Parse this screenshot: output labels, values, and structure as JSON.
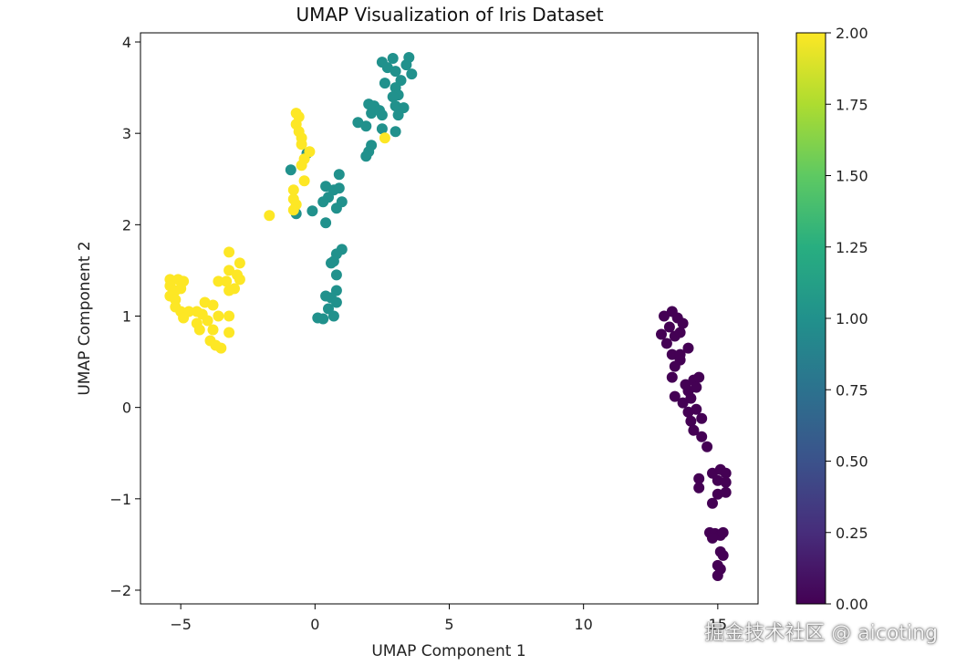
{
  "chart_data": {
    "type": "scatter",
    "title": "UMAP Visualization of Iris Dataset",
    "xlabel": "UMAP Component 1",
    "ylabel": "UMAP Component 2",
    "xlim": [
      -6.5,
      16.5
    ],
    "ylim": [
      -2.15,
      4.1
    ],
    "xticks": [
      -5,
      0,
      5,
      10,
      15
    ],
    "xtick_labels": [
      "−5",
      "0",
      "5",
      "10",
      "15"
    ],
    "yticks": [
      -2,
      -1,
      0,
      1,
      2,
      3,
      4
    ],
    "ytick_labels": [
      "−2",
      "−1",
      "0",
      "1",
      "2",
      "3",
      "4"
    ],
    "grid": false,
    "colormap": "viridis",
    "colorbar": {
      "range": [
        0,
        2
      ],
      "ticks": [
        0,
        0.25,
        0.5,
        0.75,
        1.0,
        1.25,
        1.5,
        1.75,
        2.0
      ],
      "tick_labels": [
        "0.00",
        "0.25",
        "0.50",
        "0.75",
        "1.00",
        "1.25",
        "1.50",
        "1.75",
        "2.00"
      ]
    },
    "colors": {
      "0": "#440154",
      "1": "#21918c",
      "2": "#fde725"
    },
    "points": [
      {
        "x": 13.0,
        "y": 1.0,
        "c": 0
      },
      {
        "x": 13.3,
        "y": 1.05,
        "c": 0
      },
      {
        "x": 13.5,
        "y": 0.98,
        "c": 0
      },
      {
        "x": 13.2,
        "y": 0.88,
        "c": 0
      },
      {
        "x": 13.7,
        "y": 0.92,
        "c": 0
      },
      {
        "x": 13.4,
        "y": 0.78,
        "c": 0
      },
      {
        "x": 12.9,
        "y": 0.8,
        "c": 0
      },
      {
        "x": 13.1,
        "y": 0.7,
        "c": 0
      },
      {
        "x": 13.6,
        "y": 0.82,
        "c": 0
      },
      {
        "x": 13.3,
        "y": 0.58,
        "c": 0
      },
      {
        "x": 13.6,
        "y": 0.52,
        "c": 0
      },
      {
        "x": 13.9,
        "y": 0.65,
        "c": 0
      },
      {
        "x": 13.4,
        "y": 0.45,
        "c": 0
      },
      {
        "x": 13.3,
        "y": 0.33,
        "c": 0
      },
      {
        "x": 13.8,
        "y": 0.25,
        "c": 0
      },
      {
        "x": 14.1,
        "y": 0.3,
        "c": 0
      },
      {
        "x": 14.3,
        "y": 0.33,
        "c": 0
      },
      {
        "x": 13.9,
        "y": 0.18,
        "c": 0
      },
      {
        "x": 14.2,
        "y": 0.22,
        "c": 0
      },
      {
        "x": 13.4,
        "y": 0.12,
        "c": 0
      },
      {
        "x": 13.7,
        "y": 0.05,
        "c": 0
      },
      {
        "x": 14.0,
        "y": 0.1,
        "c": 0
      },
      {
        "x": 13.9,
        "y": -0.05,
        "c": 0
      },
      {
        "x": 14.2,
        "y": -0.02,
        "c": 0
      },
      {
        "x": 14.0,
        "y": -0.15,
        "c": 0
      },
      {
        "x": 14.1,
        "y": -0.25,
        "c": 0
      },
      {
        "x": 14.4,
        "y": -0.32,
        "c": 0
      },
      {
        "x": 14.6,
        "y": -0.43,
        "c": 0
      },
      {
        "x": 14.8,
        "y": -0.72,
        "c": 0
      },
      {
        "x": 15.1,
        "y": -0.68,
        "c": 0
      },
      {
        "x": 15.3,
        "y": -0.72,
        "c": 0
      },
      {
        "x": 14.3,
        "y": -0.78,
        "c": 0
      },
      {
        "x": 15.0,
        "y": -0.8,
        "c": 0
      },
      {
        "x": 14.3,
        "y": -0.88,
        "c": 0
      },
      {
        "x": 15.0,
        "y": -0.95,
        "c": 0
      },
      {
        "x": 15.3,
        "y": -0.93,
        "c": 0
      },
      {
        "x": 14.8,
        "y": -1.05,
        "c": 0
      },
      {
        "x": 14.7,
        "y": -1.37,
        "c": 0
      },
      {
        "x": 14.9,
        "y": -1.38,
        "c": 0
      },
      {
        "x": 15.1,
        "y": -1.4,
        "c": 0
      },
      {
        "x": 15.2,
        "y": -1.37,
        "c": 0
      },
      {
        "x": 14.8,
        "y": -1.43,
        "c": 0
      },
      {
        "x": 15.1,
        "y": -1.58,
        "c": 0
      },
      {
        "x": 15.2,
        "y": -1.62,
        "c": 0
      },
      {
        "x": 15.0,
        "y": -1.73,
        "c": 0
      },
      {
        "x": 15.1,
        "y": -1.77,
        "c": 0
      },
      {
        "x": 15.0,
        "y": -1.84,
        "c": 0
      },
      {
        "x": 13.6,
        "y": 0.58,
        "c": 0
      },
      {
        "x": 14.4,
        "y": -0.12,
        "c": 0
      },
      {
        "x": 15.3,
        "y": -0.82,
        "c": 0
      },
      {
        "x": 2.5,
        "y": 3.78,
        "c": 1
      },
      {
        "x": 2.9,
        "y": 3.82,
        "c": 1
      },
      {
        "x": 3.5,
        "y": 3.83,
        "c": 1
      },
      {
        "x": 2.7,
        "y": 3.72,
        "c": 1
      },
      {
        "x": 3.0,
        "y": 3.68,
        "c": 1
      },
      {
        "x": 3.4,
        "y": 3.75,
        "c": 1
      },
      {
        "x": 3.6,
        "y": 3.65,
        "c": 1
      },
      {
        "x": 3.2,
        "y": 3.58,
        "c": 1
      },
      {
        "x": 2.6,
        "y": 3.55,
        "c": 1
      },
      {
        "x": 3.0,
        "y": 3.5,
        "c": 1
      },
      {
        "x": 3.1,
        "y": 3.42,
        "c": 1
      },
      {
        "x": 2.9,
        "y": 3.4,
        "c": 1
      },
      {
        "x": 2.0,
        "y": 3.32,
        "c": 1
      },
      {
        "x": 2.2,
        "y": 3.3,
        "c": 1
      },
      {
        "x": 2.1,
        "y": 3.22,
        "c": 1
      },
      {
        "x": 2.4,
        "y": 3.25,
        "c": 1
      },
      {
        "x": 2.5,
        "y": 3.2,
        "c": 1
      },
      {
        "x": 3.0,
        "y": 3.3,
        "c": 1
      },
      {
        "x": 3.3,
        "y": 3.28,
        "c": 1
      },
      {
        "x": 3.1,
        "y": 3.2,
        "c": 1
      },
      {
        "x": 1.6,
        "y": 3.12,
        "c": 1
      },
      {
        "x": 1.9,
        "y": 3.08,
        "c": 1
      },
      {
        "x": 2.5,
        "y": 3.05,
        "c": 1
      },
      {
        "x": 3.0,
        "y": 3.02,
        "c": 1
      },
      {
        "x": 2.1,
        "y": 2.87,
        "c": 1
      },
      {
        "x": 2.0,
        "y": 2.8,
        "c": 1
      },
      {
        "x": 1.9,
        "y": 2.75,
        "c": 1
      },
      {
        "x": -0.3,
        "y": 2.78,
        "c": 1
      },
      {
        "x": -0.9,
        "y": 2.6,
        "c": 1
      },
      {
        "x": 0.9,
        "y": 2.55,
        "c": 1
      },
      {
        "x": 0.4,
        "y": 2.42,
        "c": 1
      },
      {
        "x": 0.7,
        "y": 2.38,
        "c": 1
      },
      {
        "x": 0.9,
        "y": 2.4,
        "c": 1
      },
      {
        "x": 0.5,
        "y": 2.3,
        "c": 1
      },
      {
        "x": 0.3,
        "y": 2.25,
        "c": 1
      },
      {
        "x": 1.0,
        "y": 2.25,
        "c": 1
      },
      {
        "x": 0.8,
        "y": 2.18,
        "c": 1
      },
      {
        "x": -0.1,
        "y": 2.15,
        "c": 1
      },
      {
        "x": -0.7,
        "y": 2.12,
        "c": 1
      },
      {
        "x": 0.4,
        "y": 2.02,
        "c": 1
      },
      {
        "x": 1.0,
        "y": 1.73,
        "c": 1
      },
      {
        "x": 0.8,
        "y": 1.68,
        "c": 1
      },
      {
        "x": 0.7,
        "y": 1.6,
        "c": 1
      },
      {
        "x": 0.6,
        "y": 1.58,
        "c": 1
      },
      {
        "x": 0.8,
        "y": 1.45,
        "c": 1
      },
      {
        "x": 0.8,
        "y": 1.28,
        "c": 1
      },
      {
        "x": 0.4,
        "y": 1.22,
        "c": 1
      },
      {
        "x": 0.6,
        "y": 1.2,
        "c": 1
      },
      {
        "x": 0.8,
        "y": 1.15,
        "c": 1
      },
      {
        "x": 0.5,
        "y": 1.08,
        "c": 1
      },
      {
        "x": 0.7,
        "y": 1.0,
        "c": 1
      },
      {
        "x": 0.1,
        "y": 0.98,
        "c": 1
      },
      {
        "x": 0.3,
        "y": 0.97,
        "c": 1
      },
      {
        "x": -0.7,
        "y": 3.22,
        "c": 2
      },
      {
        "x": -0.6,
        "y": 3.18,
        "c": 2
      },
      {
        "x": -0.7,
        "y": 3.1,
        "c": 2
      },
      {
        "x": -0.6,
        "y": 3.02,
        "c": 2
      },
      {
        "x": -0.5,
        "y": 2.95,
        "c": 2
      },
      {
        "x": 2.6,
        "y": 2.95,
        "c": 2
      },
      {
        "x": -0.5,
        "y": 2.88,
        "c": 2
      },
      {
        "x": -0.2,
        "y": 2.8,
        "c": 2
      },
      {
        "x": -0.4,
        "y": 2.72,
        "c": 2
      },
      {
        "x": -0.5,
        "y": 2.65,
        "c": 2
      },
      {
        "x": -0.4,
        "y": 2.48,
        "c": 2
      },
      {
        "x": -0.8,
        "y": 2.38,
        "c": 2
      },
      {
        "x": -0.8,
        "y": 2.28,
        "c": 2
      },
      {
        "x": -0.7,
        "y": 2.22,
        "c": 2
      },
      {
        "x": -0.8,
        "y": 2.16,
        "c": 2
      },
      {
        "x": -1.7,
        "y": 2.1,
        "c": 2
      },
      {
        "x": -3.2,
        "y": 1.7,
        "c": 2
      },
      {
        "x": -2.8,
        "y": 1.58,
        "c": 2
      },
      {
        "x": -3.2,
        "y": 1.5,
        "c": 2
      },
      {
        "x": -2.9,
        "y": 1.45,
        "c": 2
      },
      {
        "x": -3.6,
        "y": 1.38,
        "c": 2
      },
      {
        "x": -3.3,
        "y": 1.38,
        "c": 2
      },
      {
        "x": -2.8,
        "y": 1.4,
        "c": 2
      },
      {
        "x": -3.0,
        "y": 1.3,
        "c": 2
      },
      {
        "x": -3.2,
        "y": 1.28,
        "c": 2
      },
      {
        "x": -5.4,
        "y": 1.4,
        "c": 2
      },
      {
        "x": -5.1,
        "y": 1.4,
        "c": 2
      },
      {
        "x": -4.9,
        "y": 1.38,
        "c": 2
      },
      {
        "x": -5.4,
        "y": 1.33,
        "c": 2
      },
      {
        "x": -5.2,
        "y": 1.28,
        "c": 2
      },
      {
        "x": -5.0,
        "y": 1.3,
        "c": 2
      },
      {
        "x": -5.4,
        "y": 1.22,
        "c": 2
      },
      {
        "x": -5.2,
        "y": 1.18,
        "c": 2
      },
      {
        "x": -5.2,
        "y": 1.1,
        "c": 2
      },
      {
        "x": -5.0,
        "y": 1.05,
        "c": 2
      },
      {
        "x": -4.7,
        "y": 1.05,
        "c": 2
      },
      {
        "x": -4.4,
        "y": 1.05,
        "c": 2
      },
      {
        "x": -4.9,
        "y": 0.98,
        "c": 2
      },
      {
        "x": -4.1,
        "y": 1.15,
        "c": 2
      },
      {
        "x": -3.8,
        "y": 1.12,
        "c": 2
      },
      {
        "x": -4.2,
        "y": 1.02,
        "c": 2
      },
      {
        "x": -3.6,
        "y": 1.0,
        "c": 2
      },
      {
        "x": -4.4,
        "y": 0.92,
        "c": 2
      },
      {
        "x": -4.0,
        "y": 0.95,
        "c": 2
      },
      {
        "x": -3.2,
        "y": 1.0,
        "c": 2
      },
      {
        "x": -4.3,
        "y": 0.85,
        "c": 2
      },
      {
        "x": -3.8,
        "y": 0.85,
        "c": 2
      },
      {
        "x": -3.2,
        "y": 0.82,
        "c": 2
      },
      {
        "x": -3.9,
        "y": 0.73,
        "c": 2
      },
      {
        "x": -3.7,
        "y": 0.68,
        "c": 2
      },
      {
        "x": -3.5,
        "y": 0.65,
        "c": 2
      }
    ]
  },
  "watermark": "掘金技术社区 @ aicoting"
}
